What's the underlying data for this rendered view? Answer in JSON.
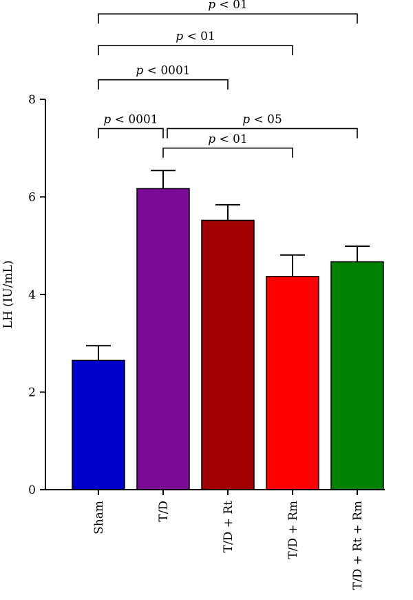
{
  "chart_data": {
    "type": "bar",
    "ylabel": "LH (IU/mL)",
    "ylim": [
      0,
      8
    ],
    "yticks": [
      0,
      2,
      4,
      6,
      8
    ],
    "categories": [
      "Sham",
      "T/D",
      "T/D + Rt",
      "T/D + Rm",
      "T/D + Rt + Rm"
    ],
    "values": [
      2.65,
      6.17,
      5.52,
      4.37,
      4.67
    ],
    "errors": [
      0.3,
      0.37,
      0.32,
      0.44,
      0.32
    ],
    "colors": [
      "#0000cc",
      "#7b0a96",
      "#a00000",
      "#ff0000",
      "#008000"
    ],
    "comparisons": [
      {
        "from": 0,
        "to": 1,
        "p": "p",
        "label": " < 0001",
        "y": 7.4
      },
      {
        "from": 0,
        "to": 2,
        "p": "p",
        "label": " < 0001",
        "y": 8.4
      },
      {
        "from": 0,
        "to": 3,
        "p": "p",
        "label": " < 01",
        "y": 9.1
      },
      {
        "from": 0,
        "to": 4,
        "p": "p",
        "label": " < 01",
        "y": 9.75
      },
      {
        "from": 1,
        "to": 3,
        "p": "p",
        "label": " < 01",
        "y": 7.0
      },
      {
        "from": 1,
        "to": 4,
        "p": "p",
        "label": " < 05",
        "y": 7.4
      }
    ]
  }
}
